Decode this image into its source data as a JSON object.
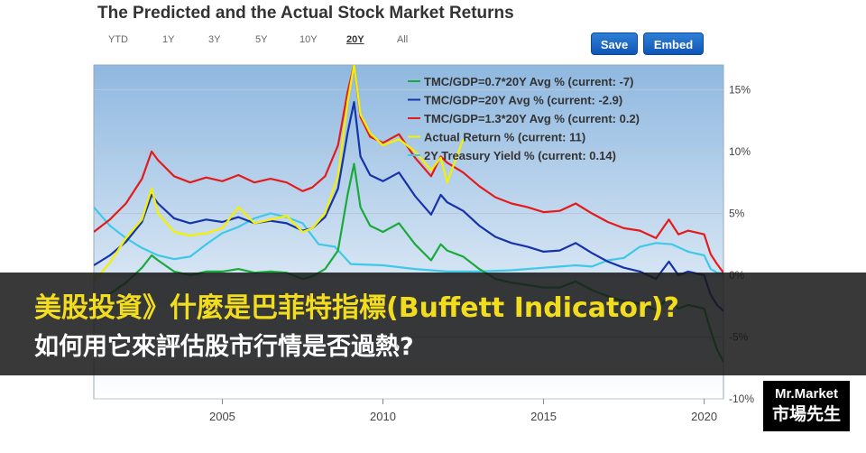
{
  "header": {
    "title": "The Predicted and the Actual Stock Market Returns",
    "ranges": [
      "YTD",
      "1Y",
      "3Y",
      "5Y",
      "10Y",
      "20Y",
      "All"
    ],
    "active_range": "20Y",
    "save_label": "Save",
    "embed_label": "Embed"
  },
  "banner": {
    "line1": "美股投資》什麼是巴菲特指標(Buffett Indicator)?",
    "line2": "如何用它來評估股市行情是否過熱?"
  },
  "brand": {
    "line1": "Mr.Market",
    "line2": "市場先生"
  },
  "colors": {
    "plot_bg_top": "#8fb8e0",
    "plot_bg_bottom": "#ffffff",
    "green": "#1aaa3a",
    "blue": "#1633a8",
    "red": "#e41b1b",
    "yellow": "#f4f000",
    "cyan": "#40c8e8"
  },
  "chart_data": {
    "type": "line",
    "title": "The Predicted and the Actual Stock Market Returns",
    "xlabel": "",
    "ylabel": "",
    "xlim": [
      2001.0,
      2020.6
    ],
    "ylim": [
      -10,
      17
    ],
    "x_ticks": [
      2005,
      2010,
      2015,
      2020
    ],
    "y_ticks": [
      {
        "value": 15,
        "label": "15%"
      },
      {
        "value": 10,
        "label": "10%"
      },
      {
        "value": 5,
        "label": "5%"
      },
      {
        "value": 0,
        "label": "0%"
      },
      {
        "value": -5,
        "label": "-5%"
      },
      {
        "value": -10,
        "label": "-10%"
      }
    ],
    "grid": true,
    "legend_position": "top-right",
    "series": [
      {
        "name": "TMC/GDP=0.7*20Y Avg % (current: -7)",
        "color": "#1aaa3a",
        "x": [
          2001.0,
          2001.5,
          2002.0,
          2002.5,
          2002.8,
          2003.0,
          2003.5,
          2004.0,
          2004.5,
          2005.0,
          2005.5,
          2006.0,
          2006.5,
          2007.0,
          2007.5,
          2007.8,
          2008.2,
          2008.6,
          2008.9,
          2009.1,
          2009.3,
          2009.6,
          2010.0,
          2010.5,
          2011.0,
          2011.5,
          2011.8,
          2012.0,
          2012.5,
          2013.0,
          2013.5,
          2014.0,
          2014.5,
          2015.0,
          2015.5,
          2016.0,
          2016.5,
          2017.0,
          2017.5,
          2018.0,
          2018.5,
          2018.9,
          2019.2,
          2019.5,
          2020.0,
          2020.2,
          2020.4,
          2020.6
        ],
        "y": [
          -2.2,
          -1.5,
          -0.6,
          0.6,
          1.6,
          1.2,
          0.3,
          0.0,
          0.3,
          0.3,
          0.5,
          0.2,
          0.3,
          0.2,
          -0.3,
          -0.1,
          0.5,
          2.0,
          6.5,
          9.0,
          5.5,
          4.0,
          3.5,
          4.2,
          2.5,
          1.2,
          2.5,
          2.0,
          1.5,
          0.5,
          -0.3,
          -0.6,
          -0.8,
          -1.0,
          -1.0,
          -0.5,
          -1.2,
          -1.7,
          -2.1,
          -2.3,
          -2.8,
          -1.8,
          -2.7,
          -2.4,
          -2.7,
          -4.5,
          -6.0,
          -7.0
        ]
      },
      {
        "name": "TMC/GDP=20Y Avg % (current: -2.9)",
        "color": "#1633a8",
        "x": [
          2001.0,
          2001.5,
          2002.0,
          2002.5,
          2002.8,
          2003.0,
          2003.5,
          2004.0,
          2004.5,
          2005.0,
          2005.5,
          2006.0,
          2006.5,
          2007.0,
          2007.5,
          2007.8,
          2008.2,
          2008.6,
          2008.9,
          2009.1,
          2009.3,
          2009.6,
          2010.0,
          2010.5,
          2011.0,
          2011.5,
          2011.8,
          2012.0,
          2012.5,
          2013.0,
          2013.5,
          2014.0,
          2014.5,
          2015.0,
          2015.5,
          2016.0,
          2016.5,
          2017.0,
          2017.5,
          2018.0,
          2018.5,
          2018.9,
          2019.2,
          2019.5,
          2020.0,
          2020.2,
          2020.4,
          2020.6
        ],
        "y": [
          0.8,
          1.6,
          2.7,
          4.3,
          6.5,
          5.8,
          4.6,
          4.2,
          4.5,
          4.3,
          4.7,
          4.2,
          4.4,
          4.2,
          3.6,
          3.8,
          4.7,
          7.0,
          11.5,
          14.0,
          9.6,
          8.1,
          7.6,
          8.3,
          6.4,
          4.9,
          6.5,
          5.9,
          5.2,
          4.0,
          3.1,
          2.6,
          2.3,
          1.9,
          2.0,
          2.6,
          1.8,
          1.1,
          0.6,
          0.3,
          -0.3,
          1.1,
          0.0,
          0.3,
          0.0,
          -1.6,
          -2.4,
          -2.9
        ]
      },
      {
        "name": "TMC/GDP=1.3*20Y Avg % (current: 0.2)",
        "color": "#e41b1b",
        "x": [
          2001.0,
          2001.5,
          2002.0,
          2002.5,
          2002.8,
          2003.0,
          2003.5,
          2004.0,
          2004.5,
          2005.0,
          2005.5,
          2006.0,
          2006.5,
          2007.0,
          2007.5,
          2007.8,
          2008.2,
          2008.6,
          2008.9,
          2009.1,
          2009.3,
          2009.6,
          2010.0,
          2010.5,
          2011.0,
          2011.5,
          2011.8,
          2012.0,
          2012.5,
          2013.0,
          2013.5,
          2014.0,
          2014.5,
          2015.0,
          2015.5,
          2016.0,
          2016.5,
          2017.0,
          2017.5,
          2018.0,
          2018.5,
          2018.9,
          2019.2,
          2019.5,
          2020.0,
          2020.2,
          2020.4,
          2020.6
        ],
        "y": [
          3.5,
          4.5,
          5.8,
          7.8,
          10.0,
          9.3,
          8.0,
          7.5,
          7.9,
          7.6,
          8.1,
          7.5,
          7.8,
          7.5,
          6.8,
          7.1,
          8.0,
          10.5,
          14.8,
          17.0,
          12.8,
          11.2,
          10.7,
          11.4,
          9.5,
          8.0,
          9.6,
          9.1,
          8.3,
          7.2,
          6.3,
          5.8,
          5.5,
          5.1,
          5.2,
          5.8,
          5.0,
          4.3,
          3.8,
          3.6,
          3.0,
          4.5,
          3.3,
          3.6,
          3.3,
          1.7,
          0.9,
          0.2
        ]
      },
      {
        "name": "Actual Return % (current: 11)",
        "color": "#f4f000",
        "x": [
          2001.0,
          2001.5,
          2002.0,
          2002.5,
          2002.8,
          2003.0,
          2003.5,
          2004.0,
          2004.5,
          2005.0,
          2005.5,
          2006.0,
          2006.5,
          2007.0,
          2007.5,
          2007.8,
          2008.2,
          2008.6,
          2008.9,
          2009.1,
          2009.3,
          2009.6,
          2010.0,
          2010.5,
          2011.0,
          2011.5,
          2011.8,
          2012.0,
          2012.5
        ],
        "y": [
          -0.5,
          1.0,
          3.0,
          4.5,
          7.0,
          5.0,
          3.5,
          3.2,
          3.4,
          3.8,
          5.5,
          4.2,
          4.5,
          4.8,
          3.5,
          3.8,
          5.0,
          8.0,
          14.0,
          17.0,
          13.0,
          11.5,
          10.5,
          11.0,
          10.0,
          8.5,
          9.5,
          7.5,
          11.0
        ]
      },
      {
        "name": "2Y Treasury Yield % (current: 0.14)",
        "color": "#40c8e8",
        "x": [
          2001.0,
          2001.5,
          2002.0,
          2002.5,
          2003.0,
          2003.5,
          2004.0,
          2004.5,
          2005.0,
          2005.5,
          2006.0,
          2006.5,
          2007.0,
          2007.5,
          2008.0,
          2008.5,
          2009.0,
          2010.0,
          2011.0,
          2012.0,
          2013.0,
          2014.0,
          2015.0,
          2015.5,
          2016.0,
          2016.5,
          2017.0,
          2017.5,
          2018.0,
          2018.5,
          2019.0,
          2019.5,
          2020.0,
          2020.2,
          2020.4,
          2020.6
        ],
        "y": [
          5.5,
          4.0,
          3.0,
          2.2,
          1.6,
          1.3,
          1.5,
          2.5,
          3.4,
          3.9,
          4.6,
          5.0,
          4.7,
          4.2,
          2.5,
          2.3,
          0.9,
          0.8,
          0.5,
          0.3,
          0.3,
          0.4,
          0.6,
          0.7,
          0.8,
          0.7,
          1.2,
          1.4,
          2.3,
          2.6,
          2.5,
          1.9,
          1.6,
          0.5,
          0.2,
          0.14
        ]
      }
    ]
  }
}
